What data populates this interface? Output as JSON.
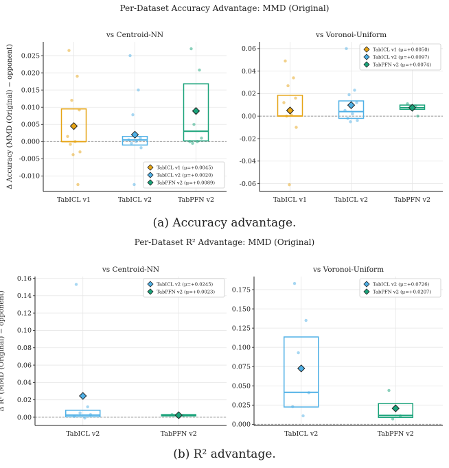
{
  "figure": {
    "title_top": "Per-Dataset Accuracy Advantage: MMD (Original)",
    "caption_a": "(a) Accuracy advantage.",
    "title_bottom": "Per-Dataset R² Advantage: MMD (Original)",
    "caption_b": "(b) R² advantage."
  },
  "colors": {
    "TabICL v1": "#e6a415",
    "TabICL v2": "#4fb0e6",
    "TabPFN v2": "#1aa37a"
  },
  "chart_data": [
    {
      "type": "box",
      "title": "vs Centroid-NN",
      "ylabel": "Δ Accuracy (MMD (Original) − opponent)",
      "xlabel": "",
      "categories": [
        "TabICL v1",
        "TabICL v2",
        "TabPFN v2"
      ],
      "ylim": [
        -0.0145,
        0.029
      ],
      "yticks": [
        -0.01,
        -0.005,
        0.0,
        0.005,
        0.01,
        0.015,
        0.02,
        0.025
      ],
      "tick_decimals": 3,
      "legend": "lower-right",
      "series": [
        {
          "name": "TabICL v1",
          "legend": "TabICL v1 (μ=+0.0045)",
          "mean": 0.0045,
          "q1": 0.0,
          "median": 0.0,
          "q3": 0.0095,
          "points": [
            0.0265,
            0.019,
            0.012,
            0.0092,
            0.0015,
            0.0,
            -0.0008,
            -0.003,
            -0.0038,
            -0.0125
          ]
        },
        {
          "name": "TabICL v2",
          "legend": "TabICL v2 (μ=+0.0020)",
          "mean": 0.002,
          "q1": -0.001,
          "median": 0.0005,
          "q3": 0.0015,
          "points": [
            0.025,
            0.015,
            0.0078,
            0.001,
            0.0005,
            0.0,
            -0.0005,
            -0.0018,
            -0.0125
          ]
        },
        {
          "name": "TabPFN v2",
          "legend": "TabPFN v2 (μ=+0.0089)",
          "mean": 0.0089,
          "q1": 0.0002,
          "median": 0.003,
          "q3": 0.0168,
          "points": [
            0.027,
            0.0208,
            0.005,
            0.001,
            0.0,
            0.0,
            -0.0005
          ]
        }
      ]
    },
    {
      "type": "box",
      "title": "vs Voronoi-Uniform",
      "ylabel": "",
      "xlabel": "",
      "categories": [
        "TabICL v1",
        "TabICL v2",
        "TabPFN v2"
      ],
      "ylim": [
        -0.067,
        0.066
      ],
      "yticks": [
        -0.06,
        -0.04,
        -0.02,
        0.0,
        0.02,
        0.04,
        0.06
      ],
      "tick_decimals": 2,
      "legend": "upper-right",
      "series": [
        {
          "name": "TabICL v1",
          "legend": "TabICL v1 (μ=+0.0050)",
          "mean": 0.005,
          "q1": 0.0,
          "median": 0.0,
          "q3": 0.0185,
          "points": [
            0.049,
            0.034,
            0.027,
            0.016,
            0.012,
            0.001,
            0.0,
            -0.01,
            -0.061
          ]
        },
        {
          "name": "TabICL v2",
          "legend": "TabICL v2 (μ=+0.0097)",
          "mean": 0.0097,
          "q1": -0.002,
          "median": 0.004,
          "q3": 0.0135,
          "points": [
            0.06,
            0.023,
            0.019,
            0.012,
            0.005,
            0.002,
            -0.002,
            -0.004,
            -0.005
          ]
        },
        {
          "name": "TabPFN v2",
          "legend": "TabPFN v2 (μ=+0.0074)",
          "mean": 0.0074,
          "q1": 0.006,
          "median": 0.0075,
          "q3": 0.0098,
          "points": [
            0.011,
            0.009,
            0.008,
            0.0
          ]
        }
      ]
    },
    {
      "type": "box",
      "title": "vs Centroid-NN",
      "ylabel": "Δ R² (MMD (Original) − opponent)",
      "xlabel": "",
      "categories": [
        "TabICL v2",
        "TabPFN v2"
      ],
      "ylim": [
        -0.0095,
        0.162
      ],
      "yticks": [
        0.0,
        0.02,
        0.04,
        0.06,
        0.08,
        0.1,
        0.12,
        0.14,
        0.16
      ],
      "tick_decimals": 2,
      "legend": "upper-right",
      "series": [
        {
          "name": "TabICL v2",
          "legend": "TabICL v2 (μ=+0.0245)",
          "mean": 0.0245,
          "q1": 0.0005,
          "median": 0.0025,
          "q3": 0.008,
          "points": [
            0.153,
            0.012,
            0.005,
            0.003,
            0.001,
            -0.001
          ]
        },
        {
          "name": "TabPFN v2",
          "legend": "TabPFN v2 (μ=+0.0023)",
          "mean": 0.0023,
          "q1": 0.0015,
          "median": 0.0023,
          "q3": 0.003,
          "points": [
            0.003,
            0.002
          ]
        }
      ]
    },
    {
      "type": "box",
      "title": "vs Voronoi-Uniform",
      "ylabel": "",
      "xlabel": "",
      "categories": [
        "TabICL v2",
        "TabPFN v2"
      ],
      "ylim": [
        -0.0015,
        0.192
      ],
      "yticks": [
        0.0,
        0.025,
        0.05,
        0.075,
        0.1,
        0.125,
        0.15,
        0.175
      ],
      "tick_decimals": 3,
      "legend": "upper-right",
      "series": [
        {
          "name": "TabICL v2",
          "legend": "TabICL v2 (μ=+0.0726)",
          "mean": 0.0726,
          "q1": 0.0225,
          "median": 0.0415,
          "q3": 0.1135,
          "points": [
            0.183,
            0.135,
            0.093,
            0.041,
            0.023,
            0.011
          ]
        },
        {
          "name": "TabPFN v2",
          "legend": "TabPFN v2 (μ=+0.0207)",
          "mean": 0.0207,
          "q1": 0.009,
          "median": 0.0115,
          "q3": 0.027,
          "points": [
            0.044,
            0.011,
            0.007
          ]
        }
      ]
    }
  ]
}
